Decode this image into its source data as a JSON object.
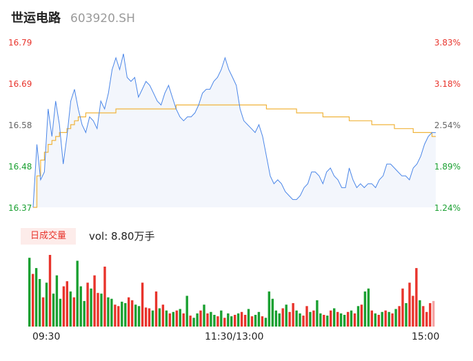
{
  "header": {
    "name": "世运电路",
    "code": "603920.SH"
  },
  "colors": {
    "up": "#e8332b",
    "down": "#1aa031",
    "neutral": "#666666",
    "price_line": "#4a86e8",
    "avg_line": "#f0b43c"
  },
  "chart_data": [
    {
      "type": "line",
      "title": "",
      "price_ticks": [
        "16.79",
        "16.69",
        "16.58",
        "16.48",
        "16.37"
      ],
      "pct_ticks": [
        "3.83%",
        "3.18%",
        "2.54%",
        "1.89%",
        "1.24%"
      ],
      "ylim": [
        16.37,
        16.79
      ],
      "x_labels": [
        "09:30",
        "11:30/13:00",
        "15:00"
      ],
      "series": [
        {
          "values": [
            16.37,
            16.53,
            16.44,
            16.46,
            16.62,
            16.55,
            16.64,
            16.58,
            16.48,
            16.55,
            16.64,
            16.67,
            16.62,
            16.58,
            16.56,
            16.6,
            16.59,
            16.57,
            16.64,
            16.62,
            16.66,
            16.72,
            16.75,
            16.72,
            16.76,
            16.7,
            16.69,
            16.7,
            16.65,
            16.67,
            16.69,
            16.68,
            16.66,
            16.64,
            16.63,
            16.66,
            16.68,
            16.65,
            16.62,
            16.6,
            16.59,
            16.6,
            16.6,
            16.61,
            16.63,
            16.66,
            16.67,
            16.67,
            16.69,
            16.7,
            16.72,
            16.75,
            16.72,
            16.7,
            16.68,
            16.62,
            16.59,
            16.58,
            16.57,
            16.56,
            16.58,
            16.55,
            16.5,
            16.45,
            16.43,
            16.44,
            16.43,
            16.41,
            16.4,
            16.39,
            16.39,
            16.4,
            16.42,
            16.43,
            16.46,
            16.46,
            16.45,
            16.43,
            16.46,
            16.47,
            16.45,
            16.44,
            16.42,
            16.42,
            16.47,
            16.44,
            16.42,
            16.43,
            16.42,
            16.43,
            16.43,
            16.42,
            16.44,
            16.45,
            16.48,
            16.48,
            16.47,
            16.46,
            16.45,
            16.45,
            16.44,
            16.47,
            16.48,
            16.5,
            16.53,
            16.55,
            16.56,
            16.56
          ]
        },
        {
          "values": [
            16.37,
            16.45,
            16.49,
            16.51,
            16.53,
            16.54,
            16.55,
            16.56,
            16.56,
            16.57,
            16.58,
            16.59,
            16.6,
            16.6,
            16.61,
            16.61,
            16.61,
            16.61,
            16.61,
            16.61,
            16.61,
            16.61,
            16.62,
            16.62,
            16.62,
            16.62,
            16.62,
            16.62,
            16.62,
            16.62,
            16.62,
            16.62,
            16.62,
            16.62,
            16.62,
            16.62,
            16.62,
            16.62,
            16.63,
            16.63,
            16.63,
            16.63,
            16.63,
            16.63,
            16.63,
            16.63,
            16.63,
            16.63,
            16.63,
            16.63,
            16.63,
            16.63,
            16.63,
            16.63,
            16.63,
            16.63,
            16.63,
            16.63,
            16.63,
            16.63,
            16.63,
            16.63,
            16.62,
            16.62,
            16.62,
            16.62,
            16.62,
            16.62,
            16.62,
            16.62,
            16.61,
            16.61,
            16.61,
            16.61,
            16.61,
            16.61,
            16.61,
            16.6,
            16.6,
            16.6,
            16.6,
            16.6,
            16.6,
            16.6,
            16.59,
            16.59,
            16.59,
            16.59,
            16.59,
            16.59,
            16.58,
            16.58,
            16.58,
            16.58,
            16.58,
            16.58,
            16.57,
            16.57,
            16.57,
            16.57,
            16.57,
            16.56,
            16.56,
            16.56,
            16.56,
            16.56,
            16.55,
            16.55
          ]
        }
      ]
    },
    {
      "type": "bar",
      "title": "日成交量",
      "annotation": "vol: 8.80万手",
      "values": [
        94,
        72,
        80,
        65,
        40,
        60,
        98,
        45,
        70,
        38,
        55,
        62,
        48,
        40,
        90,
        55,
        35,
        60,
        52,
        70,
        46,
        45,
        82,
        40,
        38,
        30,
        28,
        34,
        32,
        40,
        36,
        30,
        28,
        60,
        26,
        25,
        22,
        48,
        25,
        30,
        22,
        18,
        20,
        22,
        24,
        18,
        42,
        15,
        12,
        18,
        22,
        30,
        18,
        20,
        16,
        14,
        22,
        12,
        18,
        14,
        16,
        18,
        20,
        16,
        24,
        14,
        16,
        20,
        14,
        12,
        48,
        38,
        22,
        18,
        25,
        30,
        20,
        32,
        22,
        18,
        15,
        28,
        20,
        22,
        36,
        18,
        16,
        15,
        22,
        25,
        20,
        18,
        16,
        20,
        22,
        18,
        28,
        30,
        48,
        52,
        22,
        18,
        16,
        20,
        22,
        20,
        18,
        24,
        28,
        52,
        32,
        60,
        42,
        80,
        36,
        28,
        20,
        32,
        35
      ],
      "directions": [
        "down",
        "up",
        "down",
        "down",
        "up",
        "down",
        "up",
        "down",
        "down",
        "down",
        "up",
        "up",
        "down",
        "up",
        "down",
        "down",
        "down",
        "up",
        "down",
        "up",
        "up",
        "down",
        "up",
        "down",
        "down",
        "up",
        "up",
        "down",
        "down",
        "up",
        "up",
        "down",
        "down",
        "up",
        "up",
        "up",
        "down",
        "up",
        "down",
        "up",
        "down",
        "up",
        "down",
        "up",
        "down",
        "up",
        "down",
        "up",
        "down",
        "down",
        "up",
        "down",
        "up",
        "down",
        "down",
        "up",
        "down",
        "up",
        "down",
        "down",
        "up",
        "down",
        "up",
        "up",
        "down",
        "up",
        "down",
        "down",
        "up",
        "down",
        "down",
        "down",
        "down",
        "down",
        "up",
        "down",
        "up",
        "up",
        "down",
        "down",
        "up",
        "up",
        "down",
        "up",
        "down",
        "down",
        "up",
        "down",
        "up",
        "down",
        "up",
        "down",
        "down",
        "up",
        "down",
        "up",
        "down",
        "up",
        "down",
        "down",
        "up",
        "down",
        "up",
        "down",
        "up",
        "down",
        "up",
        "down",
        "up",
        "up",
        "down",
        "up",
        "up",
        "up",
        "down",
        "up",
        "up",
        "up",
        "neutral"
      ]
    }
  ]
}
